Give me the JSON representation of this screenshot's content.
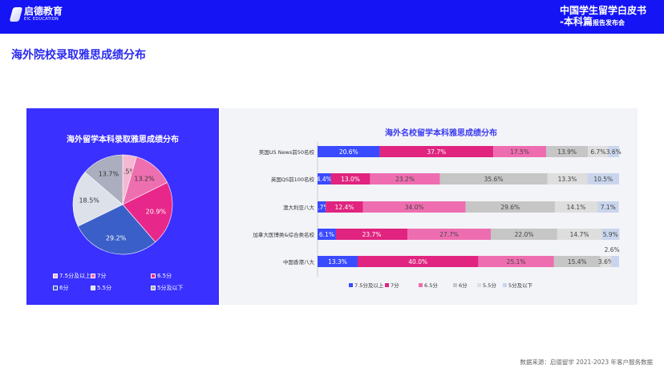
{
  "header": {
    "logo_name": "启德教育",
    "logo_sub": "EIC EDUCATION",
    "brand_line1": "中国学生留学白皮书",
    "brand_line2": "-本科篇",
    "brand_line2_small": "报告发布会"
  },
  "page_title": "海外院校录取雅思成绩分布",
  "source": "数据来源：启德留学 2021-2023 年客户服务数据",
  "colors": {
    "header": "#1414f5",
    "left_panel": "#3a30ff",
    "right_panel": "#f3f4f8"
  },
  "chart_data": [
    {
      "type": "pie",
      "title": "海外留学本科录取雅思成绩分布",
      "categories": [
        "7.5分及以上",
        "7分",
        "6.5分",
        "6分",
        "5.5分",
        "5分及以下"
      ],
      "values": [
        4.5,
        13.2,
        20.9,
        29.2,
        18.5,
        13.7
      ],
      "labels": [
        "4.5%",
        "13.2%",
        "20.9%",
        "29.2%",
        "18.5%",
        "13.7%"
      ],
      "colors": [
        "#f5b8d2",
        "#ee6fb0",
        "#e8278a",
        "#3a5fc8",
        "#dde1ea",
        "#aaaebe"
      ],
      "legend_position": "bottom"
    },
    {
      "type": "bar",
      "orientation": "horizontal",
      "stacked": true,
      "title": "海外名校留学本科雅思成绩分布",
      "categories": [
        "美国US News前50名校",
        "英国QS前100名校",
        "澳大利亚八大",
        "加拿大医博类&综合类名校",
        "中国香港八大"
      ],
      "series": [
        {
          "name": "7.5分及以上",
          "color": "#3a4bff",
          "values": [
            20.6,
            4.4,
            2.7,
            6.1,
            13.3
          ]
        },
        {
          "name": "7分",
          "color": "#e0247f",
          "values": [
            37.7,
            13.0,
            12.4,
            23.7,
            40.0
          ]
        },
        {
          "name": "6.5分",
          "color": "#ee6db0",
          "values": [
            17.5,
            23.2,
            34.0,
            27.7,
            25.1
          ]
        },
        {
          "name": "6分",
          "color": "#c6c6c6",
          "values": [
            13.9,
            35.6,
            29.6,
            22.0,
            15.4
          ]
        },
        {
          "name": "5.5分",
          "color": "#dedede",
          "values": [
            6.7,
            13.3,
            14.1,
            14.7,
            3.6
          ]
        },
        {
          "name": "5分及以下",
          "color": "#c9d5ec",
          "values": [
            3.6,
            10.5,
            7.1,
            5.9,
            2.6
          ]
        }
      ],
      "unit": "%",
      "xlim": [
        0,
        100
      ],
      "legend_position": "bottom"
    }
  ]
}
